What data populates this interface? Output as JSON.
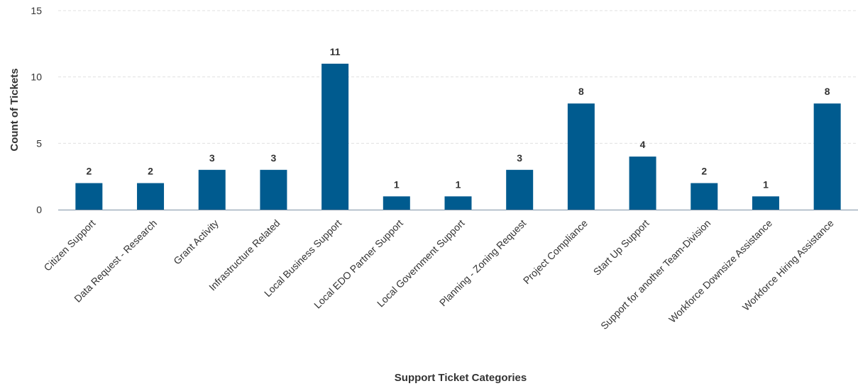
{
  "chart_data": {
    "type": "bar",
    "title": "",
    "xlabel": "Support Ticket Categories",
    "ylabel": "Count of Tickets",
    "ylim": [
      0,
      15
    ],
    "yticks": [
      0,
      5,
      10,
      15
    ],
    "grid": true,
    "legend": "none",
    "bar_color": "#005b8f",
    "categories": [
      "Citizen Support",
      "Data Request - Research",
      "Grant Activity",
      "Infrastructure Related",
      "Local Business Support",
      "Local EDO Partner Support",
      "Local Government Support",
      "Planning - Zoning Request",
      "Project Compliance",
      "Start Up Support",
      "Support for another Team-Division",
      "Workforce Downsize Assistance",
      "Workforce Hiring Assistance"
    ],
    "values": [
      2,
      2,
      3,
      3,
      11,
      1,
      1,
      3,
      8,
      4,
      2,
      1,
      8
    ]
  }
}
